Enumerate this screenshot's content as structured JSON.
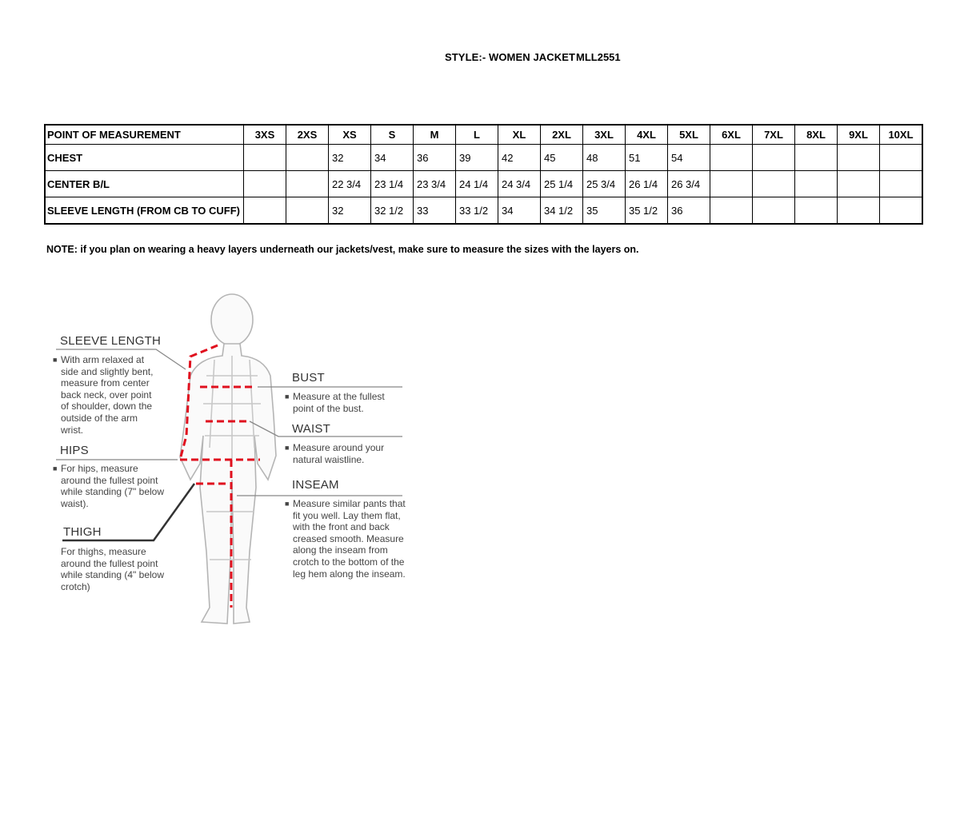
{
  "header": {
    "style_label": "STYLE:- WOMEN JACKET",
    "style_code": "MLL2551"
  },
  "table": {
    "columns": [
      "POINT OF MEASUREMENT",
      "3XS",
      "2XS",
      "XS",
      "S",
      "M",
      "L",
      "XL",
      "2XL",
      "3XL",
      "4XL",
      "5XL",
      "6XL",
      "7XL",
      "8XL",
      "9XL",
      "10XL"
    ],
    "rows": [
      [
        "CHEST",
        "",
        "",
        "32",
        "34",
        "36",
        "39",
        "42",
        "45",
        "48",
        "51",
        "54",
        "",
        "",
        "",
        "",
        ""
      ],
      [
        "CENTER B/L",
        "",
        "",
        "22 3/4",
        "23 1/4",
        "23 3/4",
        "24 1/4",
        "24 3/4",
        "25 1/4",
        "25 3/4",
        "26 1/4",
        "26 3/4",
        "",
        "",
        "",
        "",
        ""
      ],
      [
        "SLEEVE LENGTH (FROM CB TO CUFF)",
        "",
        "",
        "32",
        "32 1/2",
        "33",
        "33 1/2",
        "34",
        "34 1/2",
        "35",
        "35 1/2",
        "36",
        "",
        "",
        "",
        "",
        ""
      ]
    ]
  },
  "note": "NOTE: if you plan on wearing a heavy layers underneath our jackets/vest, make sure to measure the sizes with the layers on.",
  "figure": {
    "sleeve": {
      "title": "SLEEVE LENGTH",
      "text": "With arm relaxed at side and slightly bent, measure from center back neck, over point of shoulder, down the outside of the arm wrist."
    },
    "bust": {
      "title": "BUST",
      "text": "Measure at the fullest point of the bust."
    },
    "waist": {
      "title": "WAIST",
      "text": "Measure around your natural waistline."
    },
    "hips": {
      "title": "HIPS",
      "text": "For hips, measure around the fullest point while standing (7\" below waist)."
    },
    "inseam": {
      "title": "INSEAM",
      "text": "Measure similar pants that fit you well. Lay them flat, with the front and back creased smooth. Measure along the inseam from crotch to the bottom of the leg hem along the inseam."
    },
    "thigh": {
      "title": "THIGH",
      "text": "For thighs, measure around the fullest point while standing (4\" below crotch)"
    },
    "colors": {
      "measure_line": "#e0101e",
      "figure": "#b5b5b5"
    }
  }
}
